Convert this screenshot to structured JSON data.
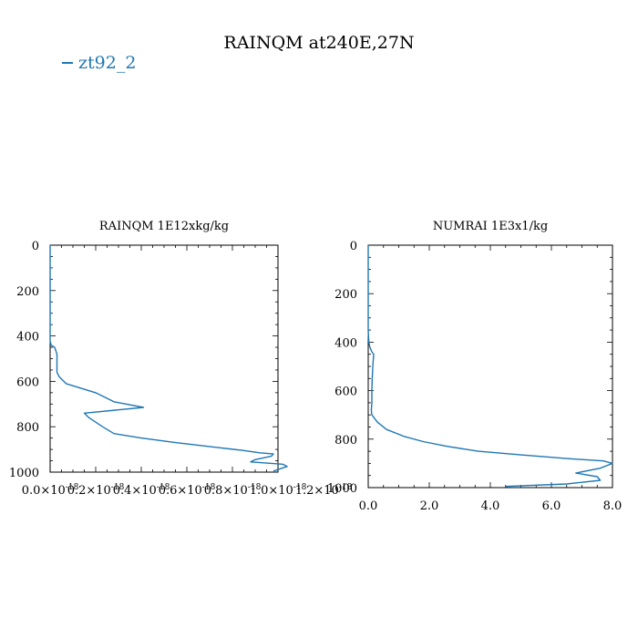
{
  "figure": {
    "title": "RAINQM at240E,27N",
    "legend": "zt92_2",
    "series_color": "#1f77b4"
  },
  "chart_data": [
    {
      "type": "line",
      "title": "RAINQM  1E12xkg/kg",
      "xlabel": "",
      "ylabel": "",
      "xlim": [
        0.0,
        1e-18
      ],
      "ylim": [
        1000,
        0
      ],
      "y_inverted": true,
      "grid": false,
      "x_tick_values": [
        0.0,
        2e-19,
        4e-19,
        6e-19,
        8e-19,
        1e-18,
        1.2e-18
      ],
      "x_tick_labels": [
        "0.0×10",
        "0.2×10",
        "0.4×10",
        "0.6×10",
        "0.8×10",
        "1.0×10",
        "1.2×10"
      ],
      "x_tick_exponent": "-18",
      "y_ticks": [
        0,
        200,
        400,
        600,
        800,
        1000
      ],
      "series": [
        {
          "name": "zt92_2",
          "x": [
            0.0,
            0.0,
            0.0,
            0.0,
            0.0,
            0.0,
            0.0,
            4e-21,
            2e-20,
            3e-20,
            3e-20,
            3e-20,
            4e-20,
            7e-20,
            2e-19,
            2.8e-19,
            4.1e-19,
            1.5e-19,
            1.7e-19,
            2.3e-19,
            2.8e-19,
            4e-19,
            5.5e-19,
            7.2e-19,
            8.5e-19,
            9.2e-19,
            9.8e-19,
            9.7e-19,
            9e-19,
            8.8e-19,
            1.02e-18,
            1.04e-18,
            9.8e-19
          ],
          "y": [
            0,
            100,
            200,
            300,
            350,
            400,
            420,
            440,
            450,
            480,
            520,
            560,
            580,
            610,
            650,
            690,
            715,
            740,
            760,
            800,
            830,
            850,
            870,
            890,
            905,
            915,
            920,
            930,
            945,
            955,
            965,
            975,
            995
          ]
        }
      ]
    },
    {
      "type": "line",
      "title": "NUMRAI  1E3x1/kg",
      "xlabel": "",
      "ylabel": "",
      "xlim": [
        0.0,
        8.0
      ],
      "ylim": [
        1000,
        0
      ],
      "y_inverted": true,
      "grid": false,
      "x_tick_values": [
        0.0,
        2.0,
        4.0,
        6.0,
        8.0
      ],
      "x_tick_labels": [
        "0.0",
        "2.0",
        "4.0",
        "6.0",
        "8.0"
      ],
      "y_ticks": [
        0,
        200,
        400,
        600,
        800,
        1000
      ],
      "series": [
        {
          "name": "zt92_2",
          "x": [
            0.0,
            0.0,
            0.0,
            0.02,
            0.05,
            0.12,
            0.18,
            0.15,
            0.13,
            0.12,
            0.12,
            0.1,
            0.12,
            0.3,
            0.6,
            1.2,
            1.8,
            2.6,
            3.6,
            5.0,
            6.5,
            7.7,
            8.0,
            7.6,
            6.8,
            7.5,
            7.6,
            6.5,
            4.5
          ],
          "y": [
            0,
            200,
            350,
            400,
            420,
            440,
            450,
            500,
            550,
            600,
            650,
            680,
            700,
            730,
            760,
            790,
            810,
            830,
            850,
            865,
            880,
            890,
            900,
            920,
            940,
            955,
            970,
            985,
            995
          ]
        }
      ]
    }
  ]
}
